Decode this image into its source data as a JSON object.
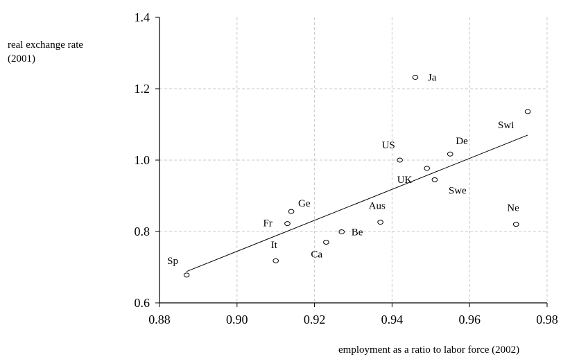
{
  "chart_data": {
    "type": "scatter",
    "xlabel": "employment as a ratio to labor force (2002)",
    "ylabel": "real exchange rate (2001)",
    "xlim": [
      0.88,
      0.98
    ],
    "ylim": [
      0.6,
      1.4
    ],
    "xticks": [
      "0.88",
      "0.90",
      "0.92",
      "0.94",
      "0.96",
      "0.98"
    ],
    "yticks": [
      "0.6",
      "0.8",
      "1.0",
      "1.2",
      "1.4"
    ],
    "grid": true,
    "points": [
      {
        "label": "Sp",
        "x": 0.887,
        "y": 0.678
      },
      {
        "label": "It",
        "x": 0.91,
        "y": 0.718
      },
      {
        "label": "Fr",
        "x": 0.913,
        "y": 0.822
      },
      {
        "label": "Ge",
        "x": 0.914,
        "y": 0.856
      },
      {
        "label": "Ca",
        "x": 0.923,
        "y": 0.77
      },
      {
        "label": "Be",
        "x": 0.927,
        "y": 0.799
      },
      {
        "label": "Aus",
        "x": 0.937,
        "y": 0.826
      },
      {
        "label": "US",
        "x": 0.942,
        "y": 1.0
      },
      {
        "label": "Ja",
        "x": 0.946,
        "y": 1.232
      },
      {
        "label": "UK",
        "x": 0.949,
        "y": 0.977
      },
      {
        "label": "Swe",
        "x": 0.951,
        "y": 0.945
      },
      {
        "label": "De",
        "x": 0.955,
        "y": 1.017
      },
      {
        "label": "Ne",
        "x": 0.972,
        "y": 0.82
      },
      {
        "label": "Swi",
        "x": 0.975,
        "y": 1.136
      }
    ],
    "trendline": {
      "x": [
        0.887,
        0.975
      ],
      "y": [
        0.688,
        1.07
      ]
    }
  }
}
